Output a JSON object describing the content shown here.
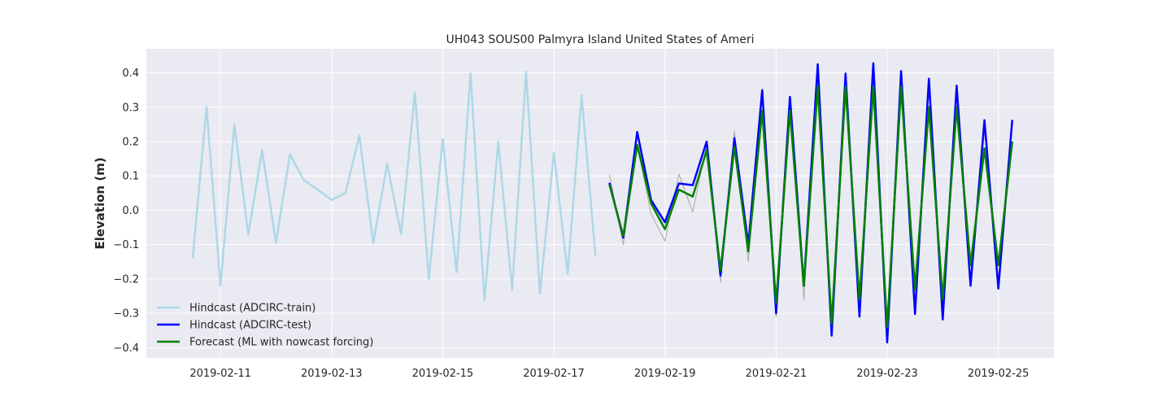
{
  "chart_data": {
    "type": "line",
    "title": "UH043 SOUS00 Palmyra Island United States of Ameri",
    "xlabel": "",
    "ylabel": "Elevation (m)",
    "x_ticks": [
      "2019-02-11",
      "2019-02-13",
      "2019-02-15",
      "2019-02-17",
      "2019-02-19",
      "2019-02-21",
      "2019-02-23",
      "2019-02-25"
    ],
    "y_ticks": [
      "0.4",
      "0.3",
      "0.2",
      "0.1",
      "0.0",
      "−0.1",
      "−0.2",
      "−0.3",
      "−0.4"
    ],
    "xlim": [
      "2019-02-09 16:00",
      "2019-02-26 00:00"
    ],
    "ylim": [
      -0.43,
      0.47
    ],
    "grid": true,
    "legend_position": "lower-left",
    "series": [
      {
        "name": "Hindcast (ADCIRC-train)",
        "color": "#add8e6",
        "x": [
          "2019-02-10 12:00",
          "2019-02-10 18:00",
          "2019-02-11 00:00",
          "2019-02-11 06:00",
          "2019-02-11 12:00",
          "2019-02-11 18:00",
          "2019-02-12 00:00",
          "2019-02-12 06:00",
          "2019-02-12 12:00",
          "2019-02-12 18:00",
          "2019-02-13 00:00",
          "2019-02-13 06:00",
          "2019-02-13 12:00",
          "2019-02-13 18:00",
          "2019-02-14 00:00",
          "2019-02-14 06:00",
          "2019-02-14 12:00",
          "2019-02-14 18:00",
          "2019-02-15 00:00",
          "2019-02-15 06:00",
          "2019-02-15 12:00",
          "2019-02-15 18:00",
          "2019-02-16 00:00",
          "2019-02-16 06:00",
          "2019-02-16 12:00",
          "2019-02-16 18:00",
          "2019-02-17 00:00",
          "2019-02-17 06:00",
          "2019-02-17 12:00",
          "2019-02-17 18:00"
        ],
        "y": [
          -0.14,
          0.3,
          -0.22,
          0.25,
          -0.07,
          0.175,
          -0.095,
          0.163,
          0.088,
          0.06,
          0.03,
          0.05,
          0.218,
          -0.095,
          0.135,
          -0.07,
          0.343,
          -0.2,
          0.207,
          -0.18,
          0.398,
          -0.262,
          0.2,
          -0.232,
          0.403,
          -0.243,
          0.168,
          -0.185,
          0.335,
          -0.133
        ]
      },
      {
        "name": "",
        "color": "#a9a9a9",
        "x": [
          "2019-02-18 00:00",
          "2019-02-18 06:00",
          "2019-02-18 12:00",
          "2019-02-18 18:00",
          "2019-02-19 00:00",
          "2019-02-19 06:00",
          "2019-02-19 12:00",
          "2019-02-19 18:00",
          "2019-02-20 00:00",
          "2019-02-20 06:00",
          "2019-02-20 12:00",
          "2019-02-20 18:00",
          "2019-02-21 00:00",
          "2019-02-21 06:00",
          "2019-02-21 12:00",
          "2019-02-21 18:00",
          "2019-02-22 00:00",
          "2019-02-22 06:00",
          "2019-02-22 12:00",
          "2019-02-22 18:00",
          "2019-02-23 00:00",
          "2019-02-23 06:00",
          "2019-02-23 12:00",
          "2019-02-23 18:00",
          "2019-02-24 00:00",
          "2019-02-24 06:00",
          "2019-02-24 12:00",
          "2019-02-24 18:00",
          "2019-02-25 00:00",
          "2019-02-25 06:00"
        ],
        "y": [
          0.105,
          -0.1,
          0.19,
          -0.01,
          -0.09,
          0.105,
          -0.005,
          0.19,
          -0.21,
          0.23,
          -0.15,
          0.34,
          -0.31,
          0.32,
          -0.26,
          0.4,
          -0.35,
          0.39,
          -0.29,
          0.41,
          -0.37,
          0.39,
          -0.28,
          0.37,
          -0.3,
          0.34,
          -0.2,
          0.23,
          -0.2,
          0.25
        ]
      },
      {
        "name": "Hindcast (ADCIRC-test)",
        "color": "#0000ff",
        "x": [
          "2019-02-18 00:00",
          "2019-02-18 06:00",
          "2019-02-18 12:00",
          "2019-02-18 18:00",
          "2019-02-19 00:00",
          "2019-02-19 06:00",
          "2019-02-19 12:00",
          "2019-02-19 18:00",
          "2019-02-20 00:00",
          "2019-02-20 06:00",
          "2019-02-20 12:00",
          "2019-02-20 18:00",
          "2019-02-21 00:00",
          "2019-02-21 06:00",
          "2019-02-21 12:00",
          "2019-02-21 18:00",
          "2019-02-22 00:00",
          "2019-02-22 06:00",
          "2019-02-22 12:00",
          "2019-02-22 18:00",
          "2019-02-23 00:00",
          "2019-02-23 06:00",
          "2019-02-23 12:00",
          "2019-02-23 18:00",
          "2019-02-24 00:00",
          "2019-02-24 06:00",
          "2019-02-24 12:00",
          "2019-02-24 18:00",
          "2019-02-25 00:00",
          "2019-02-25 06:00"
        ],
        "y": [
          0.08,
          -0.08,
          0.228,
          0.03,
          -0.035,
          0.078,
          0.073,
          0.2,
          -0.19,
          0.21,
          -0.1,
          0.35,
          -0.3,
          0.33,
          -0.22,
          0.425,
          -0.365,
          0.398,
          -0.31,
          0.428,
          -0.385,
          0.405,
          -0.302,
          0.383,
          -0.318,
          0.363,
          -0.22,
          0.262,
          -0.228,
          0.263
        ]
      },
      {
        "name": "Forecast (ML with nowcast forcing)",
        "color": "#008000",
        "x": [
          "2019-02-18 00:00",
          "2019-02-18 06:00",
          "2019-02-18 12:00",
          "2019-02-18 18:00",
          "2019-02-19 00:00",
          "2019-02-19 06:00",
          "2019-02-19 12:00",
          "2019-02-19 18:00",
          "2019-02-20 00:00",
          "2019-02-20 06:00",
          "2019-02-20 12:00",
          "2019-02-20 18:00",
          "2019-02-21 00:00",
          "2019-02-21 06:00",
          "2019-02-21 12:00",
          "2019-02-21 18:00",
          "2019-02-22 00:00",
          "2019-02-22 06:00",
          "2019-02-22 12:00",
          "2019-02-22 18:00",
          "2019-02-23 00:00",
          "2019-02-23 06:00",
          "2019-02-23 12:00",
          "2019-02-23 18:00",
          "2019-02-24 00:00",
          "2019-02-24 06:00",
          "2019-02-24 12:00",
          "2019-02-24 18:00",
          "2019-02-25 00:00",
          "2019-02-25 06:00"
        ],
        "y": [
          0.075,
          -0.075,
          0.19,
          0.02,
          -0.055,
          0.06,
          0.04,
          0.175,
          -0.175,
          0.185,
          -0.12,
          0.29,
          -0.27,
          0.29,
          -0.22,
          0.36,
          -0.33,
          0.36,
          -0.26,
          0.36,
          -0.34,
          0.36,
          -0.23,
          0.3,
          -0.26,
          0.3,
          -0.16,
          0.18,
          -0.16,
          0.2
        ]
      }
    ]
  }
}
